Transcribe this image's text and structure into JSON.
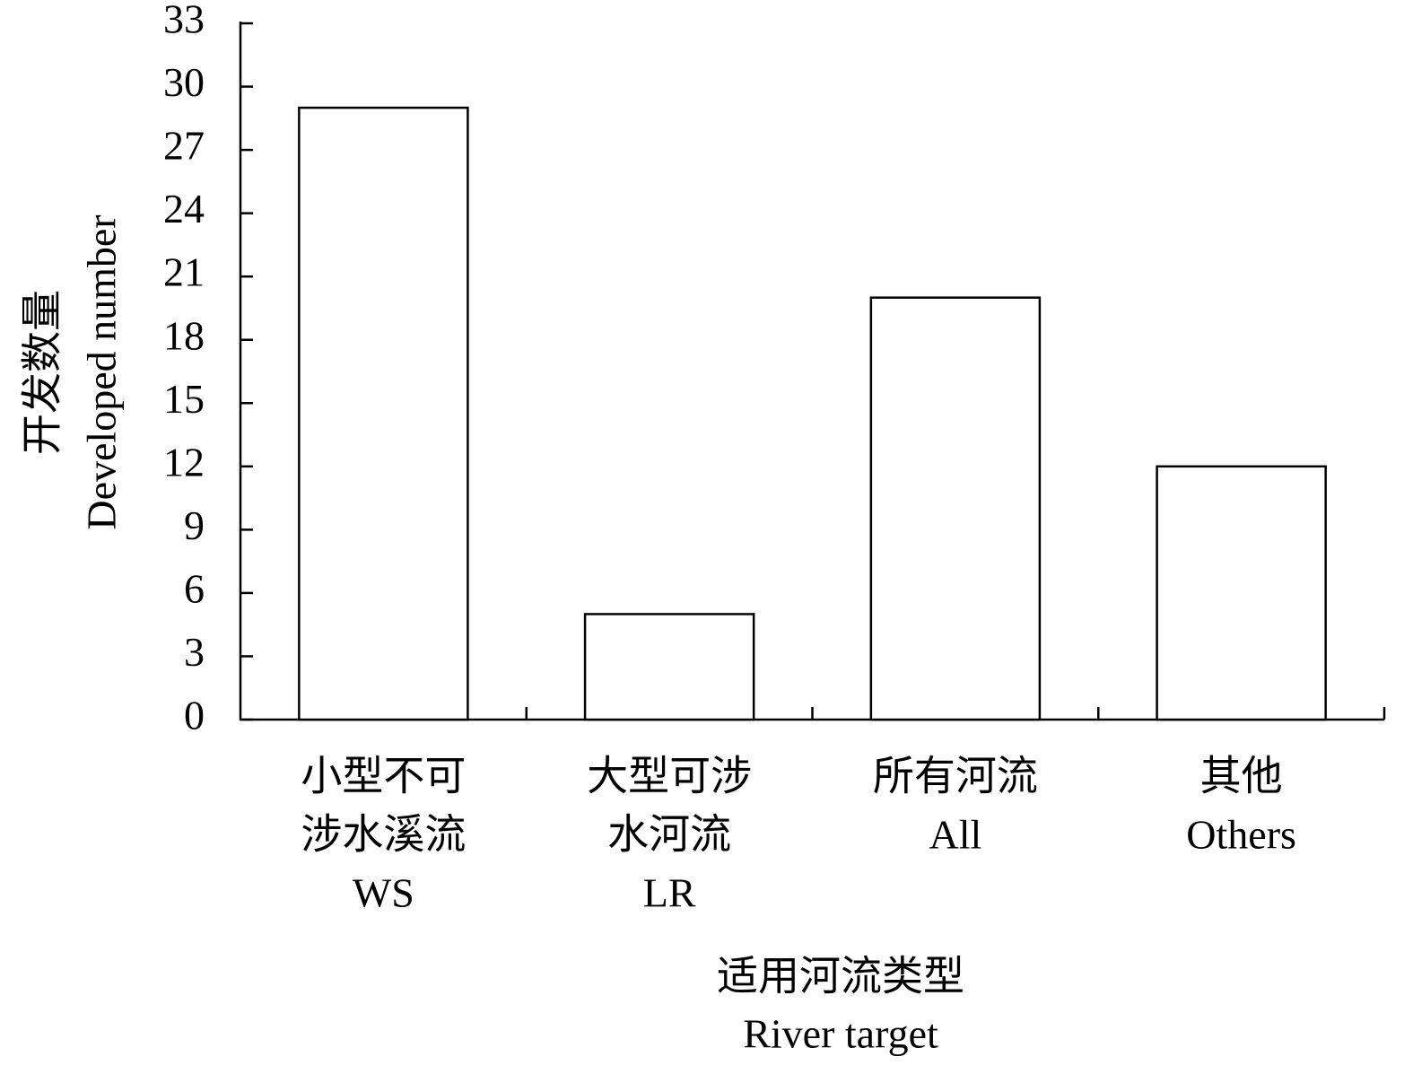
{
  "chart_data": {
    "type": "bar",
    "y_label": [
      "开发数量",
      "Developed number"
    ],
    "x_label": [
      "适用河流类型",
      "River target"
    ],
    "categories": [
      [
        "小型不可",
        "涉水溪流",
        "WS"
      ],
      [
        "大型可涉",
        "水河流",
        "LR"
      ],
      [
        "所有河流",
        "All"
      ],
      [
        "其他",
        "Others"
      ]
    ],
    "values": [
      29,
      5,
      20,
      12
    ],
    "color": "#ffffff",
    "edgecolor": "#000000",
    "ylim": [
      0,
      33
    ],
    "yticks": [
      0,
      3,
      6,
      9,
      12,
      15,
      18,
      21,
      24,
      27,
      30,
      33
    ],
    "grid": false
  }
}
